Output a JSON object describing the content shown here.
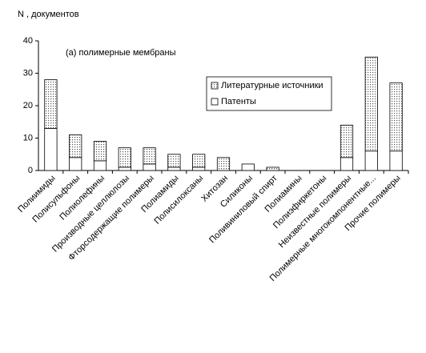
{
  "chart_data": {
    "type": "stacked-bar",
    "ylabel": "N , документов",
    "annotation": "(а) полимерные мембраны",
    "categories": [
      "Полиимиды",
      "Полисульфоны",
      "Полиолефины",
      "Производные целлюлозы",
      "Фторсодержащие полимеры",
      "Полиамиды",
      "Полисилоксаны",
      "Хитозан",
      "Силиконы",
      "Поливиниловый спирт",
      "Полиамины",
      "Полиэфиркетоны",
      "Неизвестные полимеры",
      "Полимерные многокомпонентные...",
      "Прочие полимеры"
    ],
    "series": [
      {
        "name": "Патенты",
        "color": "#ffffff",
        "values": [
          13,
          4,
          3,
          1,
          2,
          1,
          1,
          0,
          2,
          0,
          0,
          0,
          4,
          6,
          6
        ]
      },
      {
        "name": "Литературные источники",
        "color": "#555555",
        "pattern": "dots",
        "values": [
          15,
          7,
          6,
          6,
          5,
          4,
          4,
          4,
          0,
          1,
          0,
          0,
          10,
          29,
          21
        ]
      }
    ],
    "ylim": [
      0,
      40
    ],
    "yticks": [
      0,
      10,
      20,
      30,
      40
    ],
    "grid": false,
    "legend": "upper-center"
  }
}
